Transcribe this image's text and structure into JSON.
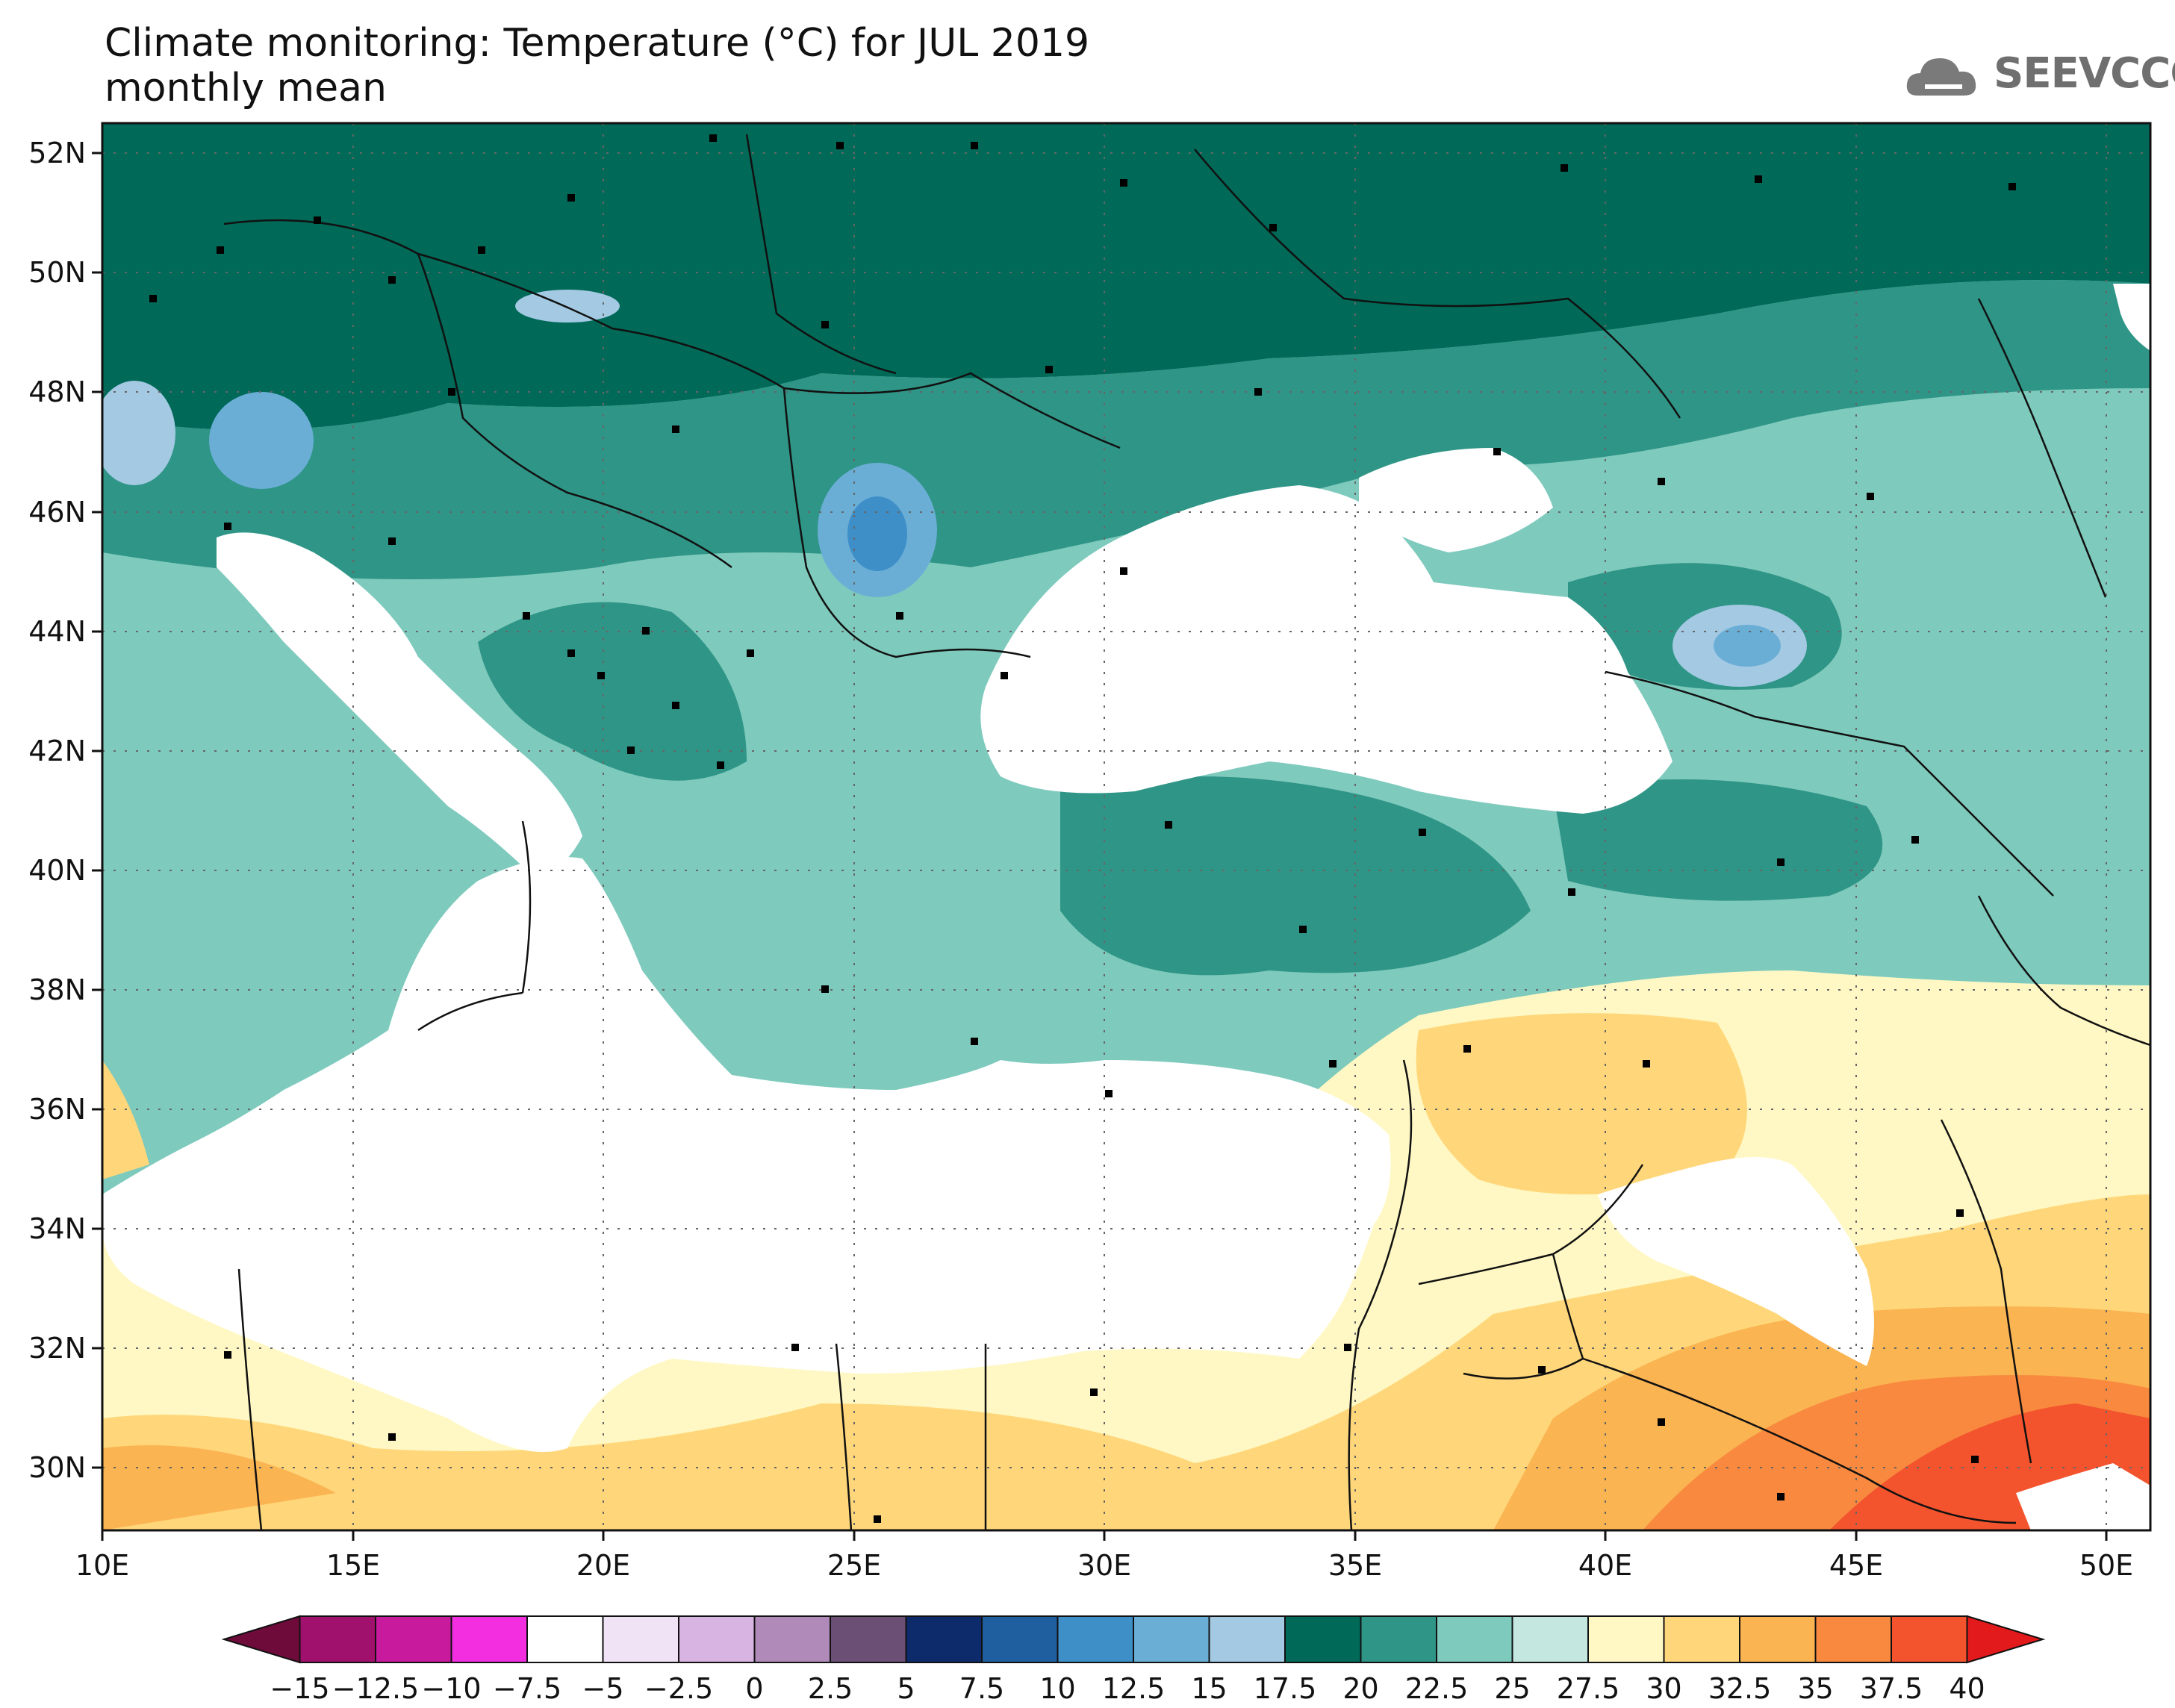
{
  "title": {
    "line1": "Climate monitoring: Temperature (°C) for JUL 2019",
    "line2": "monthly mean"
  },
  "logo": {
    "text": "SEEVCCC",
    "icon": "cloud-logo-icon"
  },
  "map": {
    "lon_range": [
      10,
      51
    ],
    "lat_range": [
      29,
      52.5
    ],
    "lon_ticks": [
      "10E",
      "15E",
      "20E",
      "25E",
      "30E",
      "35E",
      "40E",
      "45E",
      "50E"
    ],
    "lat_ticks": [
      "52N",
      "50N",
      "48N",
      "46N",
      "44N",
      "42N",
      "40N",
      "38N",
      "36N",
      "34N",
      "32N",
      "30N"
    ],
    "grid": "dotted"
  },
  "colorbar": {
    "labels": [
      "−15",
      "−12.5",
      "−10",
      "−7.5",
      "−5",
      "−2.5",
      "0",
      "2.5",
      "5",
      "7.5",
      "10",
      "12.5",
      "15",
      "17.5",
      "20",
      "22.5",
      "25",
      "27.5",
      "30",
      "32.5",
      "35",
      "37.5",
      "40"
    ],
    "colors": [
      "#6e0b3b",
      "#a0116d",
      "#c81a9c",
      "#f22ee0",
      "#ffffff",
      "#f0e3f5",
      "#d8b4e2",
      "#b08ab8",
      "#6b4f74",
      "#0d2a6b",
      "#1f5fa0",
      "#3e8fc8",
      "#6aaed6",
      "#a3c9e3",
      "#006957",
      "#2f9586",
      "#7ecabd",
      "#c4e8e0",
      "#fff8c4",
      "#ffd77a",
      "#fbb452",
      "#f8893e",
      "#f3542e",
      "#e31a1c"
    ]
  }
}
